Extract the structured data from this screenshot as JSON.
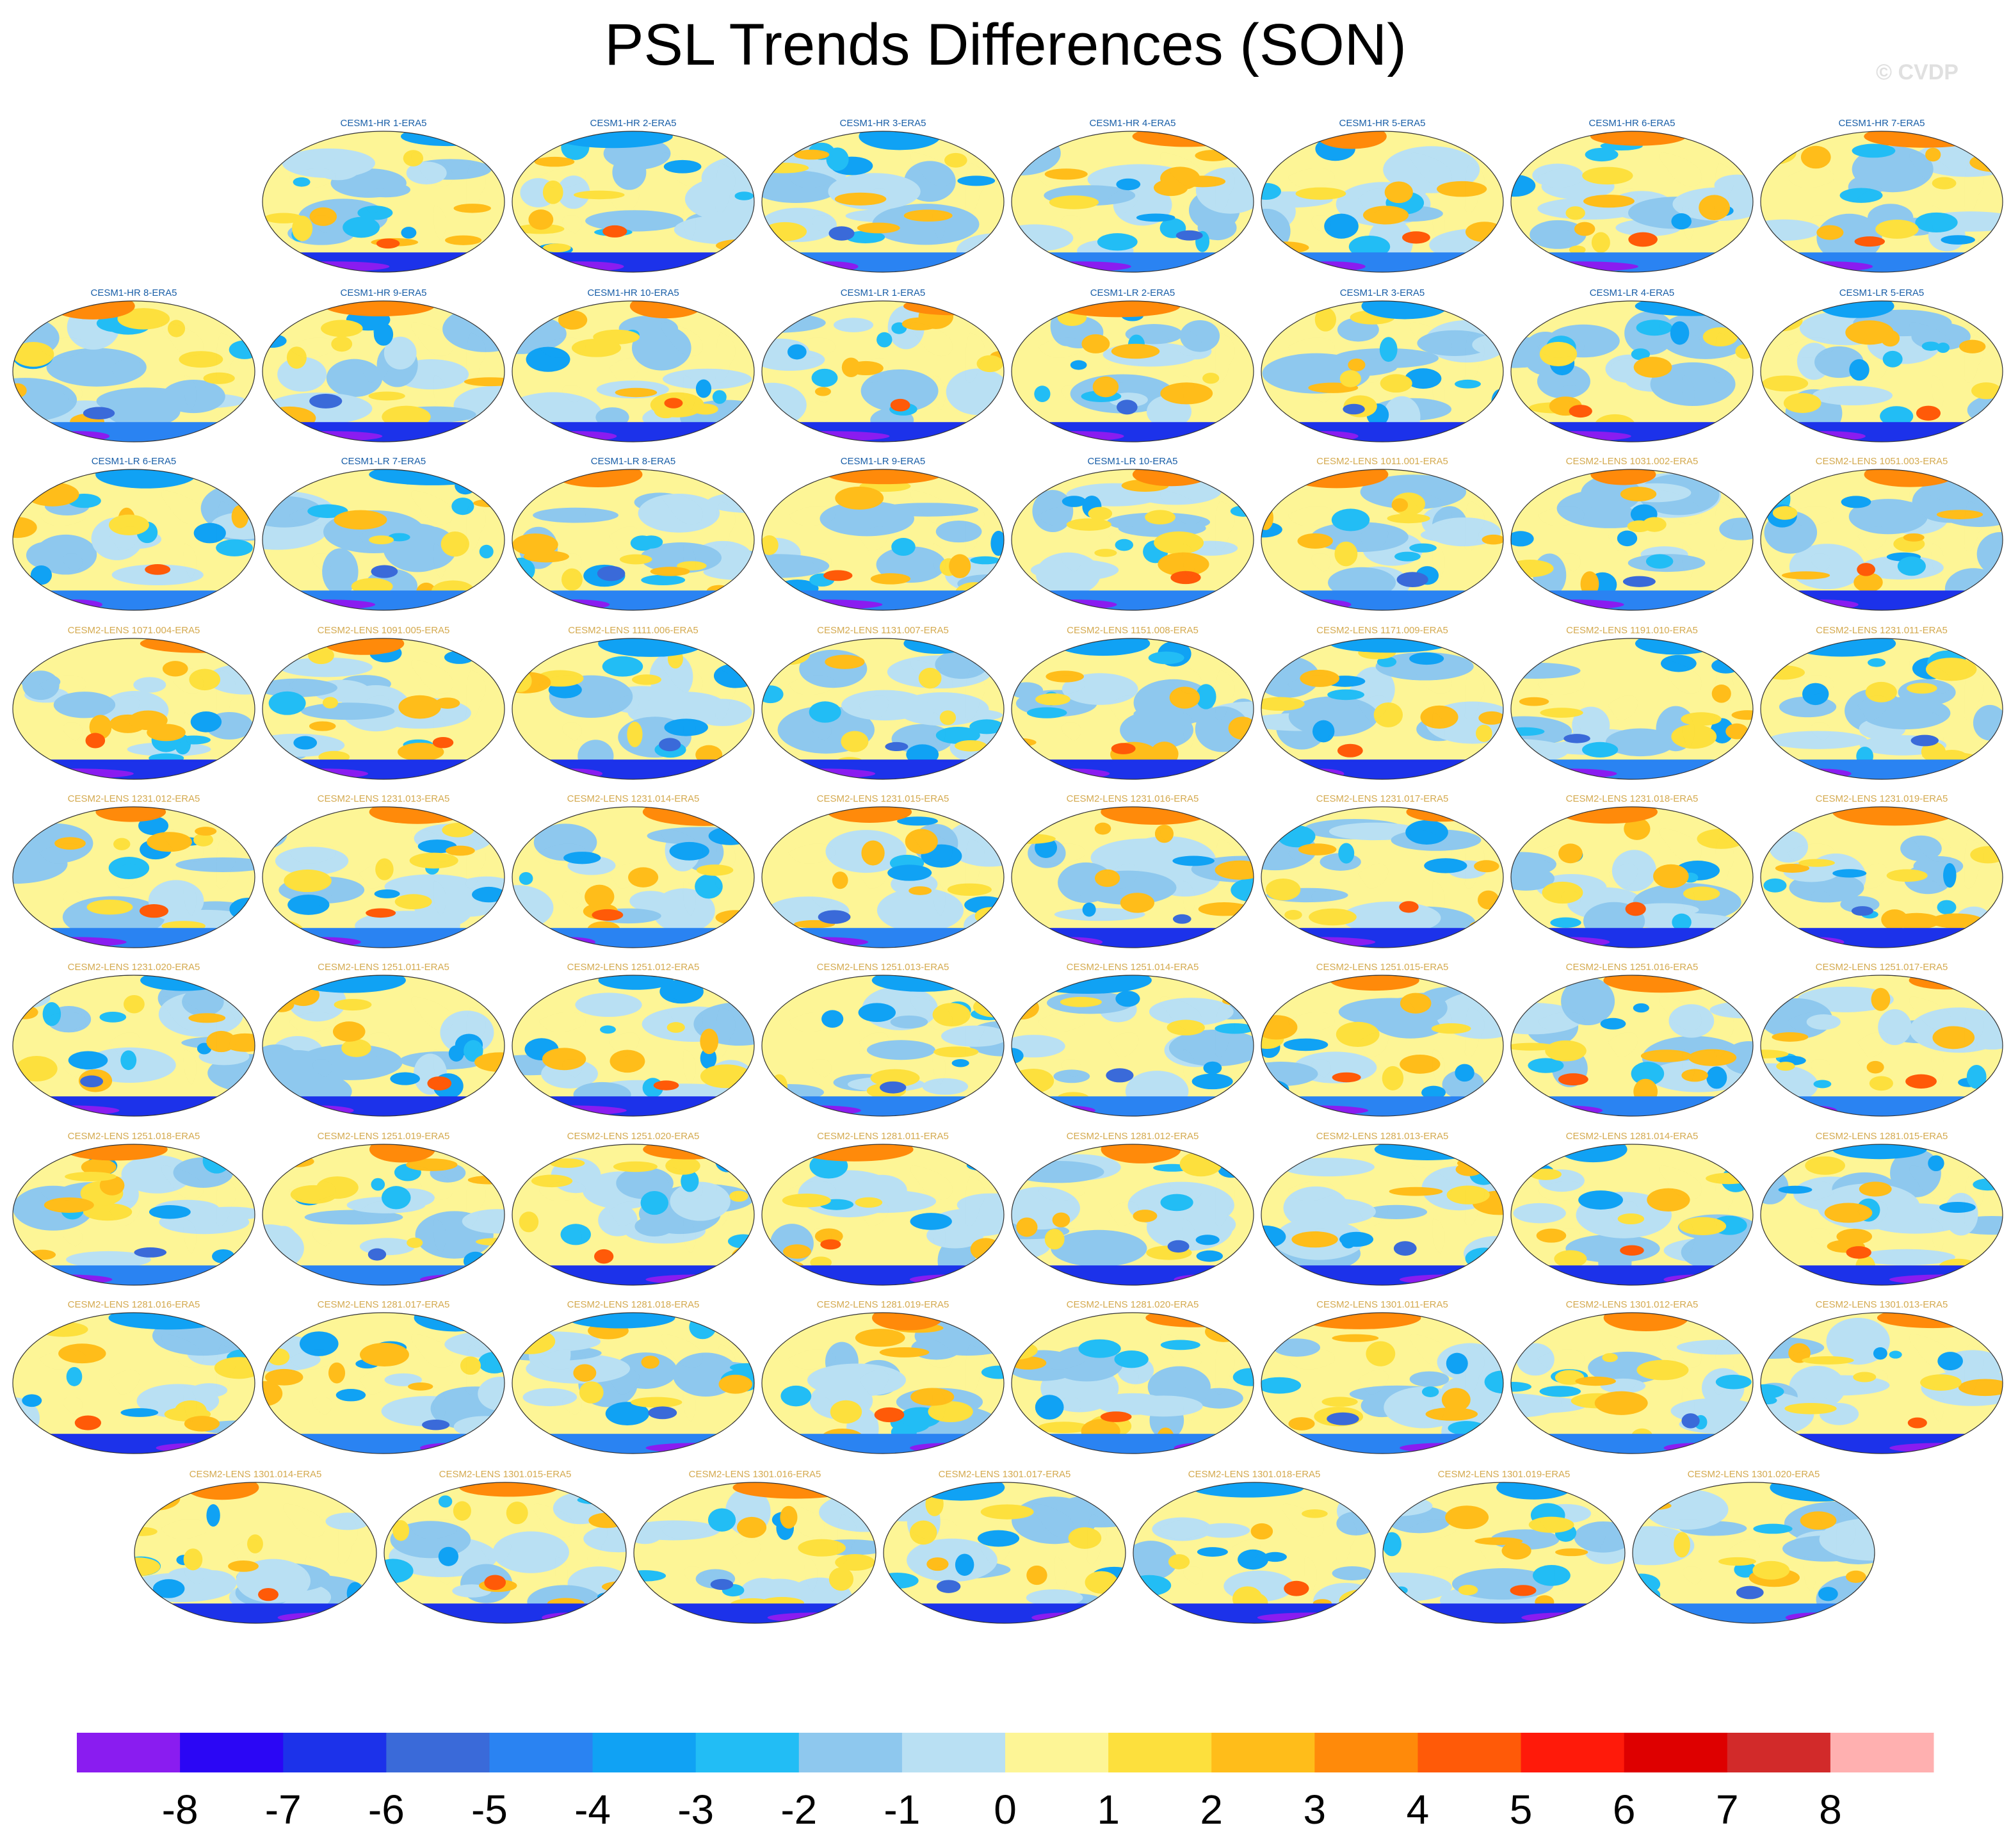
{
  "title": "PSL Trends Differences (SON)",
  "watermark": "© CVDP",
  "colors": {
    "label_hr_lr": "#1a5fa8",
    "label_lens": "#d4aa50",
    "coast": "#555555",
    "ocean": "#fdf596"
  },
  "chart_data": {
    "type": "heatmap",
    "description_type": "panel map grid",
    "panels": [
      "CESM1-HR 1-ERA5",
      "CESM1-HR 2-ERA5",
      "CESM1-HR 3-ERA5",
      "CESM1-HR 4-ERA5",
      "CESM1-HR 5-ERA5",
      "CESM1-HR 6-ERA5",
      "CESM1-HR 7-ERA5",
      "CESM1-HR 8-ERA5",
      "CESM1-HR 9-ERA5",
      "CESM1-HR 10-ERA5",
      "CESM1-LR 1-ERA5",
      "CESM1-LR 2-ERA5",
      "CESM1-LR 3-ERA5",
      "CESM1-LR 4-ERA5",
      "CESM1-LR 5-ERA5",
      "CESM1-LR 6-ERA5",
      "CESM1-LR 7-ERA5",
      "CESM1-LR 8-ERA5",
      "CESM1-LR 9-ERA5",
      "CESM1-LR 10-ERA5",
      "CESM2-LENS 1011.001-ERA5",
      "CESM2-LENS 1031.002-ERA5",
      "CESM2-LENS 1051.003-ERA5",
      "CESM2-LENS 1071.004-ERA5",
      "CESM2-LENS 1091.005-ERA5",
      "CESM2-LENS 1111.006-ERA5",
      "CESM2-LENS 1131.007-ERA5",
      "CESM2-LENS 1151.008-ERA5",
      "CESM2-LENS 1171.009-ERA5",
      "CESM2-LENS 1191.010-ERA5",
      "CESM2-LENS 1231.011-ERA5",
      "CESM2-LENS 1231.012-ERA5",
      "CESM2-LENS 1231.013-ERA5",
      "CESM2-LENS 1231.014-ERA5",
      "CESM2-LENS 1231.015-ERA5",
      "CESM2-LENS 1231.016-ERA5",
      "CESM2-LENS 1231.017-ERA5",
      "CESM2-LENS 1231.018-ERA5",
      "CESM2-LENS 1231.019-ERA5",
      "CESM2-LENS 1231.020-ERA5",
      "CESM2-LENS 1251.011-ERA5",
      "CESM2-LENS 1251.012-ERA5",
      "CESM2-LENS 1251.013-ERA5",
      "CESM2-LENS 1251.014-ERA5",
      "CESM2-LENS 1251.015-ERA5",
      "CESM2-LENS 1251.016-ERA5",
      "CESM2-LENS 1251.017-ERA5",
      "CESM2-LENS 1251.018-ERA5",
      "CESM2-LENS 1251.019-ERA5",
      "CESM2-LENS 1251.020-ERA5",
      "CESM2-LENS 1281.011-ERA5",
      "CESM2-LENS 1281.012-ERA5",
      "CESM2-LENS 1281.013-ERA5",
      "CESM2-LENS 1281.014-ERA5",
      "CESM2-LENS 1281.015-ERA5",
      "CESM2-LENS 1281.016-ERA5",
      "CESM2-LENS 1281.017-ERA5",
      "CESM2-LENS 1281.018-ERA5",
      "CESM2-LENS 1281.019-ERA5",
      "CESM2-LENS 1281.020-ERA5",
      "CESM2-LENS 1301.011-ERA5",
      "CESM2-LENS 1301.012-ERA5",
      "CESM2-LENS 1301.013-ERA5",
      "CESM2-LENS 1301.014-ERA5",
      "CESM2-LENS 1301.015-ERA5",
      "CESM2-LENS 1301.016-ERA5",
      "CESM2-LENS 1301.017-ERA5",
      "CESM2-LENS 1301.018-ERA5",
      "CESM2-LENS 1301.019-ERA5",
      "CESM2-LENS 1301.020-ERA5"
    ],
    "colorbar": {
      "ticks": [
        "-8",
        "-7",
        "-6",
        "-5",
        "-4",
        "-3",
        "-2",
        "-1",
        "0",
        "1",
        "2",
        "3",
        "4",
        "5",
        "6",
        "7",
        "8"
      ],
      "colors": [
        "#8a1cf0",
        "#2b06f5",
        "#1c32ea",
        "#3a6ad9",
        "#2a83f2",
        "#10a2f4",
        "#22bdf5",
        "#8ec8ee",
        "#b9e0f3",
        "#fdf596",
        "#fde03d",
        "#ffbd1a",
        "#ff8a0a",
        "#ff5a08",
        "#ff1a0a",
        "#de0000",
        "#d22a2a",
        "#ffb0b0"
      ]
    }
  }
}
